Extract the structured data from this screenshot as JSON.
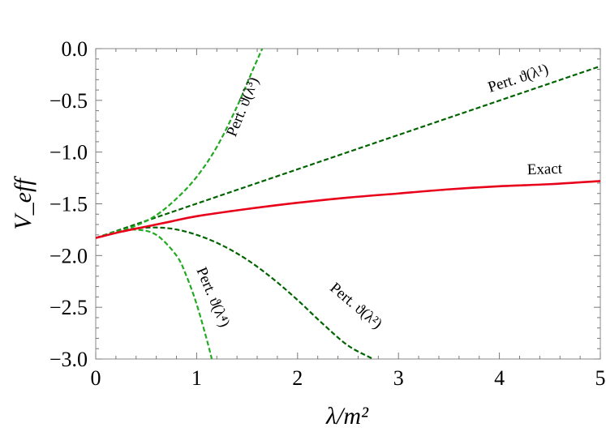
{
  "chart_data": {
    "type": "line",
    "xlabel": "λ/m²",
    "ylabel": "V_eff",
    "xlim": [
      0,
      5
    ],
    "ylim": [
      -3.0,
      0.0
    ],
    "x_ticks": [
      "0",
      "1",
      "2",
      "3",
      "4",
      "5"
    ],
    "y_ticks": [
      "0.0",
      "−0.5",
      "−1.0",
      "−1.5",
      "−2.0",
      "−2.5",
      "−3.0"
    ],
    "grid": false,
    "series": [
      {
        "name": "Exact",
        "label_text": "Exact",
        "color": "#e8001a",
        "style": "solid",
        "x": [
          0,
          0.25,
          0.5,
          0.75,
          1.0,
          1.5,
          2.0,
          2.5,
          3.0,
          3.5,
          4.0,
          4.5,
          5.0
        ],
        "y": [
          -1.83,
          -1.77,
          -1.72,
          -1.67,
          -1.62,
          -1.55,
          -1.49,
          -1.44,
          -1.4,
          -1.36,
          -1.33,
          -1.31,
          -1.28
        ]
      },
      {
        "name": "Pert. O(λ¹)",
        "label_text": "Pert. ϑ(λ¹)",
        "color": "#006400",
        "style": "dashed",
        "x": [
          0,
          5.0
        ],
        "y": [
          -1.83,
          -0.17
        ]
      },
      {
        "name": "Pert. O(λ²)",
        "label_text": "Pert. ϑ(λ²)",
        "color": "#006400",
        "style": "dashed",
        "x": [
          0,
          0.25,
          0.5,
          0.75,
          1.0,
          1.25,
          1.5,
          1.75,
          2.0,
          2.25,
          2.5,
          2.75
        ],
        "y": [
          -1.83,
          -1.76,
          -1.73,
          -1.74,
          -1.8,
          -1.9,
          -2.04,
          -2.22,
          -2.43,
          -2.66,
          -2.87,
          -3.0
        ]
      },
      {
        "name": "Pert. O(λ³)",
        "label_text": "Pert. ϑ(λ³)",
        "color": "#22aa22",
        "style": "dashed",
        "x": [
          0,
          0.2,
          0.4,
          0.6,
          0.8,
          1.0,
          1.2,
          1.4,
          1.55,
          1.65
        ],
        "y": [
          -1.83,
          -1.77,
          -1.71,
          -1.61,
          -1.45,
          -1.24,
          -0.95,
          -0.56,
          -0.22,
          0.0
        ]
      },
      {
        "name": "Pert. O(λ⁴)",
        "label_text": "Pert. ϑ(λ⁴)",
        "color": "#22aa22",
        "style": "dashed",
        "x": [
          0,
          0.2,
          0.4,
          0.6,
          0.8,
          0.9,
          1.0,
          1.1,
          1.15
        ],
        "y": [
          -1.83,
          -1.77,
          -1.75,
          -1.8,
          -2.0,
          -2.2,
          -2.47,
          -2.81,
          -3.0
        ]
      }
    ]
  }
}
